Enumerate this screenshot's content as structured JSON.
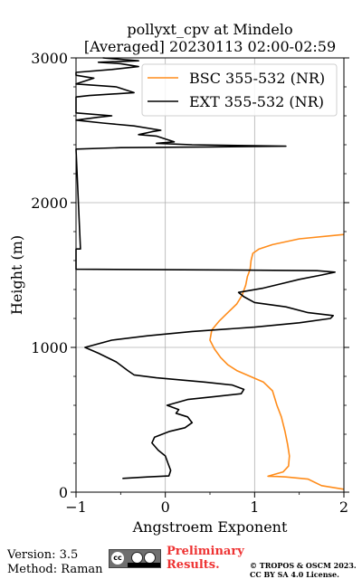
{
  "chart_data": {
    "type": "line",
    "title": "pollyxt_cpv at Mindelo",
    "subtitle": "[Averaged] 20230113 02:00-02:59",
    "xlabel": "Angstroem Exponent",
    "ylabel": "Height (m)",
    "xlim": [
      -1,
      2
    ],
    "ylim": [
      0,
      3000
    ],
    "xticks": [
      "−1",
      "0",
      "1",
      "2"
    ],
    "yticks": [
      "0",
      "1000",
      "2000",
      "3000"
    ],
    "grid": true,
    "legend_position": "top-right",
    "series": [
      {
        "name": "BSC 355-532 (NR)",
        "color": "#ff8c1a",
        "points": [
          [
            2.0,
            20
          ],
          [
            1.75,
            45
          ],
          [
            1.6,
            90
          ],
          [
            1.35,
            105
          ],
          [
            1.25,
            108
          ],
          [
            1.15,
            110
          ],
          [
            1.32,
            140
          ],
          [
            1.38,
            180
          ],
          [
            1.39,
            250
          ],
          [
            1.37,
            330
          ],
          [
            1.34,
            420
          ],
          [
            1.3,
            520
          ],
          [
            1.25,
            600
          ],
          [
            1.2,
            700
          ],
          [
            1.1,
            760
          ],
          [
            0.95,
            800
          ],
          [
            0.8,
            840
          ],
          [
            0.7,
            880
          ],
          [
            0.62,
            930
          ],
          [
            0.55,
            990
          ],
          [
            0.5,
            1050
          ],
          [
            0.52,
            1120
          ],
          [
            0.6,
            1180
          ],
          [
            0.7,
            1240
          ],
          [
            0.8,
            1300
          ],
          [
            0.86,
            1360
          ],
          [
            0.9,
            1430
          ],
          [
            0.92,
            1490
          ],
          [
            0.95,
            1540
          ],
          [
            0.96,
            1600
          ],
          [
            0.98,
            1650
          ],
          [
            1.05,
            1680
          ],
          [
            1.2,
            1710
          ],
          [
            1.5,
            1750
          ],
          [
            2.0,
            1780
          ]
        ]
      },
      {
        "name": "EXT 355-532 (NR)",
        "color": "#000000",
        "points": [
          [
            -0.48,
            95
          ],
          [
            -0.2,
            105
          ],
          [
            0.04,
            112
          ],
          [
            0.06,
            150
          ],
          [
            0.03,
            200
          ],
          [
            0.0,
            250
          ],
          [
            -0.08,
            290
          ],
          [
            -0.15,
            340
          ],
          [
            -0.12,
            380
          ],
          [
            0.05,
            420
          ],
          [
            0.22,
            445
          ],
          [
            0.3,
            480
          ],
          [
            0.25,
            520
          ],
          [
            0.12,
            545
          ],
          [
            0.15,
            570
          ],
          [
            0.02,
            600
          ],
          [
            0.25,
            640
          ],
          [
            0.55,
            660
          ],
          [
            0.85,
            680
          ],
          [
            0.88,
            710
          ],
          [
            0.75,
            740
          ],
          [
            0.45,
            760
          ],
          [
            -0.1,
            790
          ],
          [
            -0.35,
            810
          ],
          [
            -0.42,
            840
          ],
          [
            -0.55,
            900
          ],
          [
            -0.75,
            960
          ],
          [
            -0.9,
            1000
          ],
          [
            -0.6,
            1050
          ],
          [
            -0.2,
            1080
          ],
          [
            0.3,
            1110
          ],
          [
            1.0,
            1140
          ],
          [
            1.5,
            1170
          ],
          [
            1.85,
            1200
          ],
          [
            1.88,
            1220
          ],
          [
            1.6,
            1240
          ],
          [
            1.35,
            1280
          ],
          [
            1.0,
            1310
          ],
          [
            0.88,
            1350
          ],
          [
            0.82,
            1380
          ],
          [
            1.1,
            1410
          ],
          [
            1.3,
            1440
          ],
          [
            1.5,
            1470
          ],
          [
            1.75,
            1500
          ],
          [
            1.9,
            1520
          ],
          [
            1.7,
            1530
          ],
          [
            0.7,
            1535
          ],
          [
            -1.0,
            1540
          ],
          [
            -1.0,
            1680
          ],
          [
            -0.95,
            1680
          ],
          [
            -1.0,
            2370
          ],
          [
            -0.5,
            2380
          ],
          [
            0.5,
            2385
          ],
          [
            1.35,
            2390
          ],
          [
            0.3,
            2400
          ],
          [
            -0.1,
            2410
          ],
          [
            0.1,
            2420
          ],
          [
            0.0,
            2440
          ],
          [
            -0.1,
            2460
          ],
          [
            -0.3,
            2470
          ],
          [
            -0.15,
            2490
          ],
          [
            -0.05,
            2500
          ],
          [
            -0.35,
            2530
          ],
          [
            -0.7,
            2550
          ],
          [
            -1.0,
            2570
          ],
          [
            -0.75,
            2590
          ],
          [
            -0.6,
            2600
          ],
          [
            -1.0,
            2620
          ],
          [
            -1.0,
            2730
          ],
          [
            -0.85,
            2740
          ],
          [
            -0.35,
            2760
          ],
          [
            -0.55,
            2800
          ],
          [
            -1.0,
            2820
          ],
          [
            -0.8,
            2860
          ],
          [
            -1.0,
            2880
          ],
          [
            -1.0,
            2900
          ],
          [
            -0.6,
            2920
          ],
          [
            -0.3,
            2940
          ],
          [
            -0.5,
            2960
          ],
          [
            -0.75,
            2970
          ],
          [
            -0.3,
            2980
          ],
          [
            -0.7,
            3000
          ]
        ]
      }
    ]
  },
  "footer": {
    "version": "Version: 3.5",
    "method": "Method: Raman",
    "badge_text": "cc",
    "preliminary_line1": "Preliminary",
    "preliminary_line2": "Results.",
    "copyright_line1": "© TROPOS & OSCM 2023.",
    "copyright_line2": "CC BY SA 4.0 License."
  }
}
